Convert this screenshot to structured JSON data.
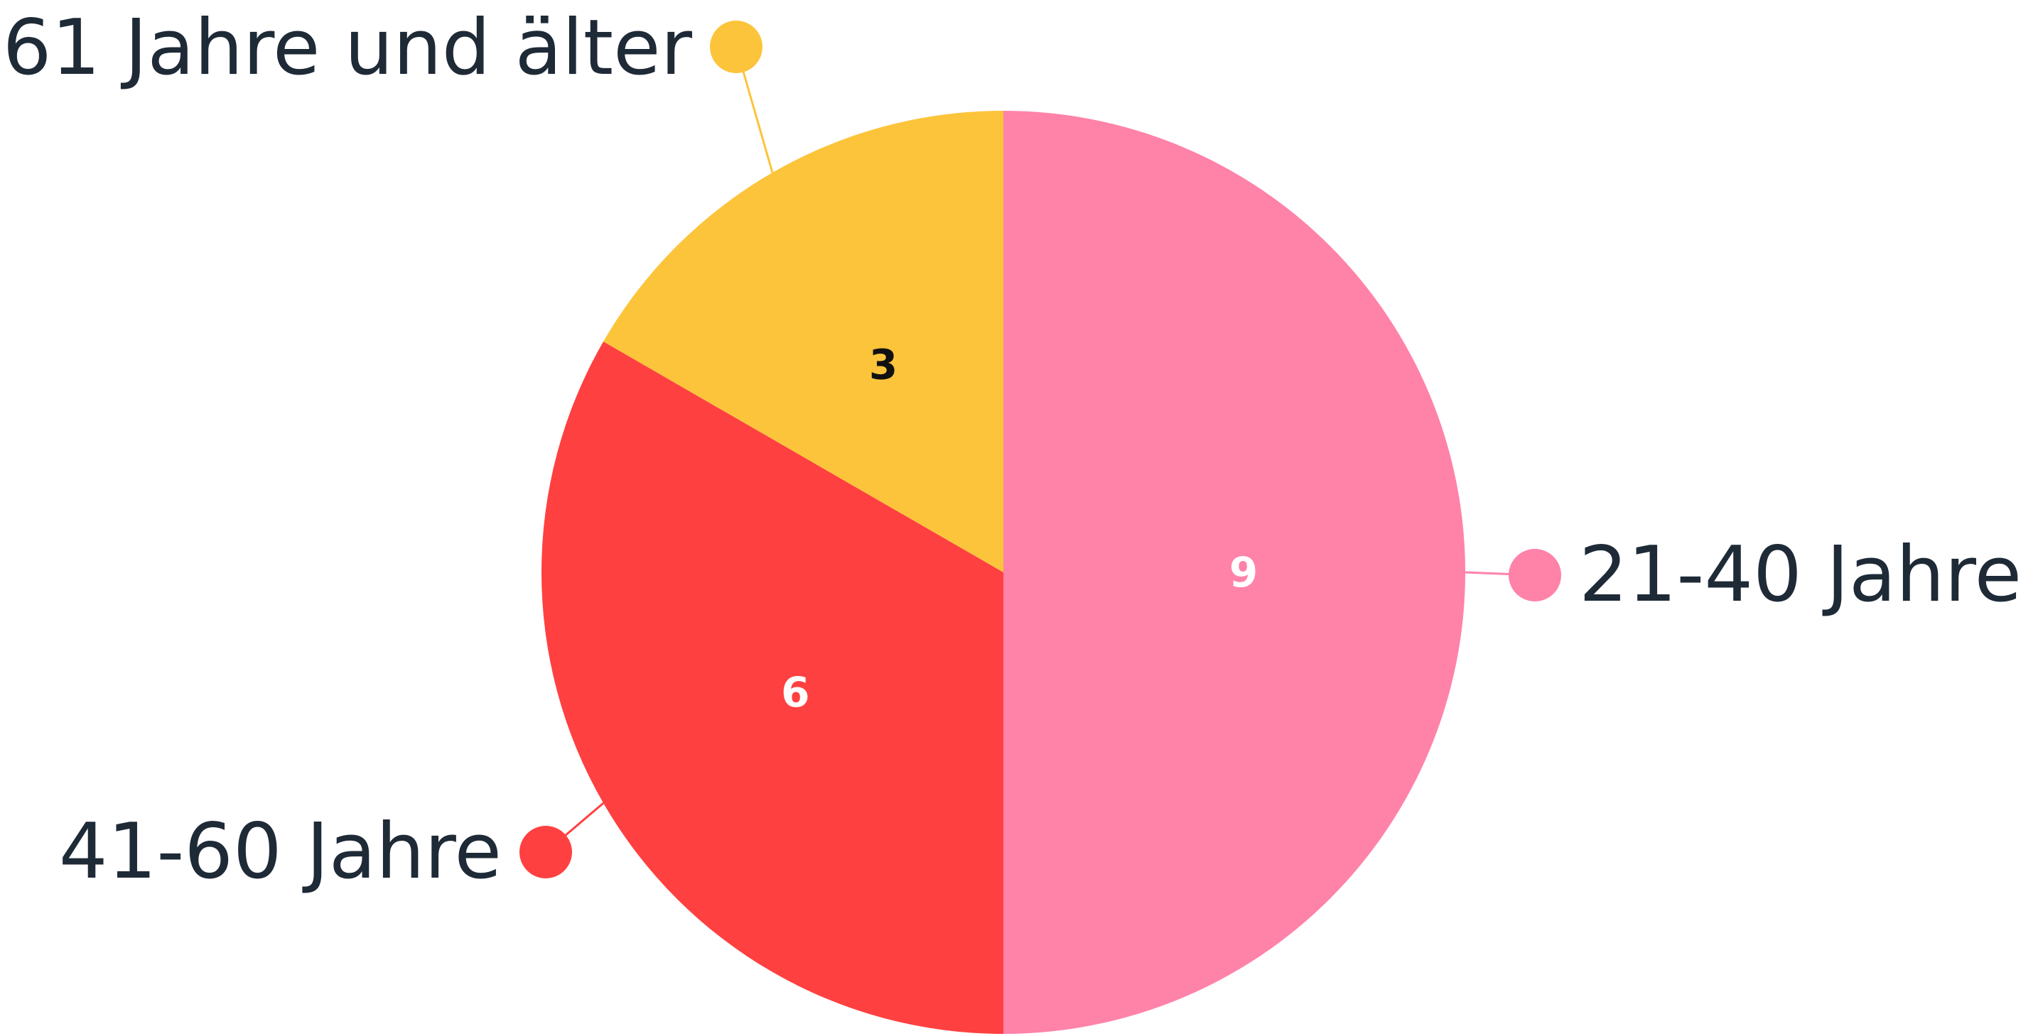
{
  "chart_data": {
    "type": "pie",
    "title": "",
    "start_angle_deg": 0,
    "direction": "clockwise",
    "slices": [
      {
        "label": "21-40 Jahre",
        "value": 9,
        "color": "#ff82a9",
        "value_color": "#ffffff"
      },
      {
        "label": "41-60 Jahre",
        "value": 6,
        "color": "#ff4040",
        "value_color": "#ffffff"
      },
      {
        "label": "61 Jahre und älter",
        "value": 3,
        "color": "#fcc43a",
        "value_color": "#111111"
      }
    ]
  }
}
